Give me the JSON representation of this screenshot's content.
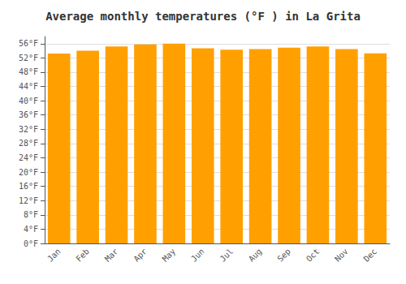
{
  "chart_data": {
    "type": "bar",
    "title": "Average monthly temperatures (°F ) in La Grita",
    "categories": [
      "Jan",
      "Feb",
      "Mar",
      "Apr",
      "May",
      "Jun",
      "Jul",
      "Aug",
      "Sep",
      "Oct",
      "Nov",
      "Dec"
    ],
    "values": [
      53.2,
      54.0,
      55.2,
      55.8,
      56.0,
      54.7,
      54.3,
      54.5,
      54.9,
      55.2,
      54.5,
      53.3
    ],
    "color": "#FFA000",
    "ylim": [
      0,
      58
    ],
    "yticks": [
      {
        "value": 0,
        "label": "0°F"
      },
      {
        "value": 4,
        "label": "4°F"
      },
      {
        "value": 8,
        "label": "8°F"
      },
      {
        "value": 12,
        "label": "12°F"
      },
      {
        "value": 16,
        "label": "16°F"
      },
      {
        "value": 20,
        "label": "20°F"
      },
      {
        "value": 24,
        "label": "24°F"
      },
      {
        "value": 28,
        "label": "28°F"
      },
      {
        "value": 32,
        "label": "32°F"
      },
      {
        "value": 36,
        "label": "36°F"
      },
      {
        "value": 40,
        "label": "40°F"
      },
      {
        "value": 44,
        "label": "44°F"
      },
      {
        "value": 48,
        "label": "48°F"
      },
      {
        "value": 52,
        "label": "52°F"
      },
      {
        "value": 56,
        "label": "56°F"
      }
    ],
    "grid": true
  }
}
